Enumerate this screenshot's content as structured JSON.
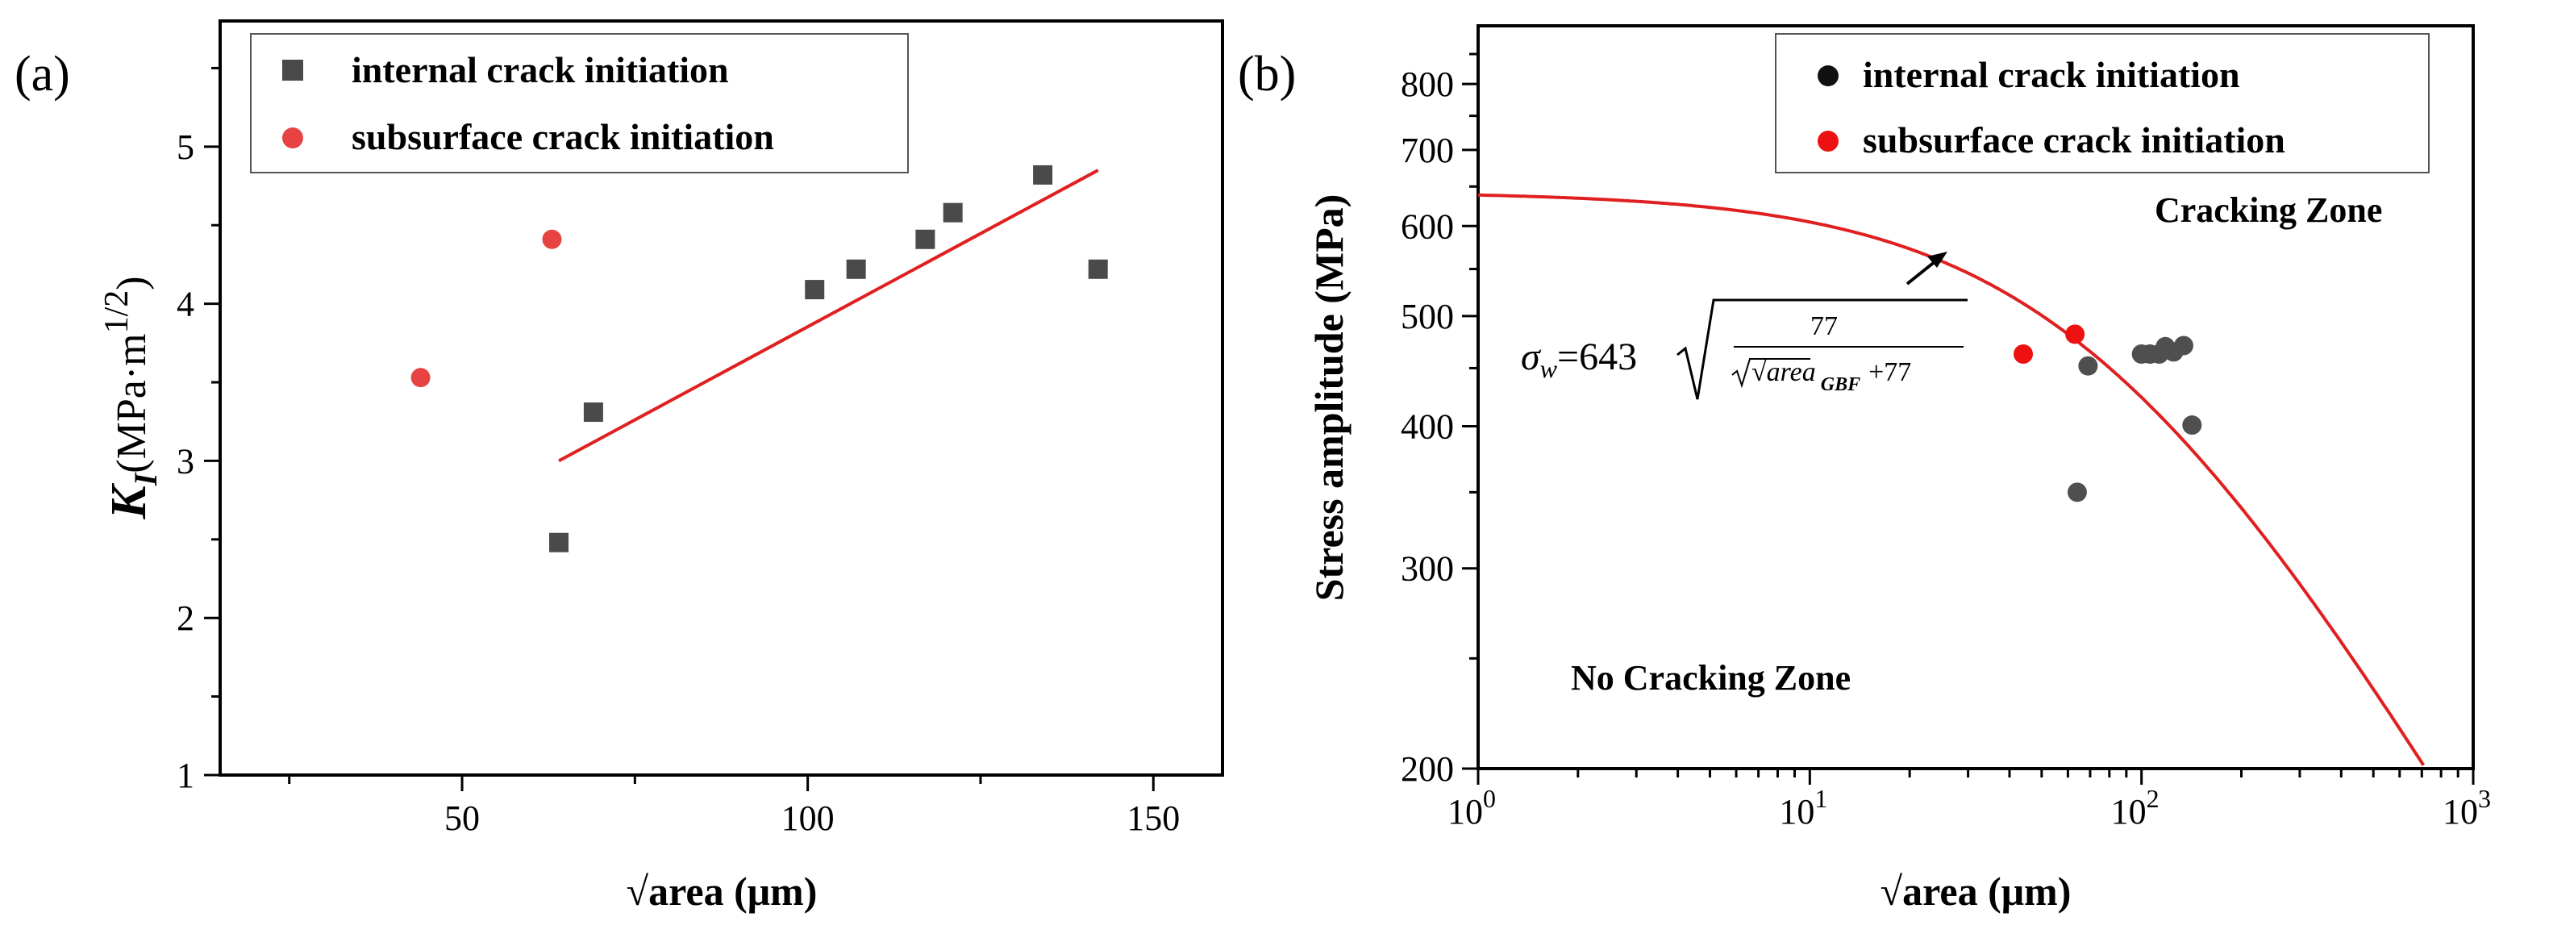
{
  "charts": [
    {
      "panel_label": "(a)",
      "type": "scatter",
      "xlabel": "√area (μm)",
      "ylabel_main": "K",
      "ylabel_sub": "I",
      "ylabel_units": "(MPa·m",
      "ylabel_exp": "1/2",
      "ylabel_close": ")",
      "xlim": [
        15,
        160
      ],
      "ylim": [
        1,
        5.8
      ],
      "xticks": [
        "50",
        "100",
        "150"
      ],
      "xtick_values": [
        50,
        100,
        150
      ],
      "xminor": [
        25,
        75,
        125
      ],
      "yticks": [
        "1",
        "2",
        "3",
        "4",
        "5"
      ],
      "ytick_values": [
        1,
        2,
        3,
        4,
        5
      ],
      "yminor": [
        1.5,
        2.5,
        3.5,
        4.5,
        5.5
      ],
      "series": [
        {
          "name": "internal crack initiation",
          "marker": "square",
          "color": "#4a4a4a",
          "points": [
            [
              64,
              2.48
            ],
            [
              69,
              3.31
            ],
            [
              101,
              4.09
            ],
            [
              107,
              4.22
            ],
            [
              117,
              4.41
            ],
            [
              121,
              4.58
            ],
            [
              134,
              4.82
            ],
            [
              142,
              4.22
            ]
          ]
        },
        {
          "name": "subsurface crack initiation",
          "marker": "circle",
          "color": "#e84343",
          "points": [
            [
              44,
              3.53
            ],
            [
              63,
              4.41
            ]
          ]
        }
      ],
      "fit_line": {
        "color": "#e02020",
        "points": [
          [
            64,
            3.0
          ],
          [
            142,
            4.85
          ]
        ]
      }
    },
    {
      "panel_label": "(b)",
      "type": "scatter",
      "xscale": "log",
      "yscale": "log",
      "xlabel": "√area (μm)",
      "ylabel": "Stress amplitude (MPa)",
      "xlim": [
        1,
        1000
      ],
      "ylim": [
        200,
        900
      ],
      "xticks": [
        {
          "value": 1,
          "base": "10",
          "exp": "0"
        },
        {
          "value": 10,
          "base": "10",
          "exp": "1"
        },
        {
          "value": 100,
          "base": "10",
          "exp": "2"
        },
        {
          "value": 1000,
          "base": "10",
          "exp": "3"
        }
      ],
      "yticks": [
        "200",
        "300",
        "400",
        "500",
        "600",
        "700",
        "800"
      ],
      "ytick_values": [
        200,
        300,
        400,
        500,
        600,
        700,
        800
      ],
      "series": [
        {
          "name": "internal crack initiation",
          "marker": "circle",
          "color": "#4f4f4f",
          "legend_color": "#111111",
          "points": [
            [
              64,
              350
            ],
            [
              69,
              452
            ],
            [
              100,
              463
            ],
            [
              106,
              463
            ],
            [
              113,
              463
            ],
            [
              118,
              470
            ],
            [
              125,
              465
            ],
            [
              134,
              471
            ],
            [
              142,
              401
            ]
          ]
        },
        {
          "name": "subsurface crack initiation",
          "marker": "circle",
          "color": "#ee1111",
          "legend_color": "#ee1111",
          "points": [
            [
              44,
              463
            ],
            [
              63,
              482
            ]
          ]
        }
      ],
      "curve": {
        "label": "σw = 643 · sqrt(77 / (√area_GBF + 77))",
        "sigma0": 643,
        "constant": 77,
        "color": "#e02020"
      },
      "formula": {
        "sigma": "σ",
        "sub": "w",
        "prefix": "=643",
        "numerator": "77",
        "den_area": "√area",
        "den_sub": "GBF",
        "den_plus": "+77"
      },
      "annotations": {
        "cracking_zone": "Cracking Zone",
        "no_cracking_zone": "No Cracking Zone"
      }
    }
  ]
}
